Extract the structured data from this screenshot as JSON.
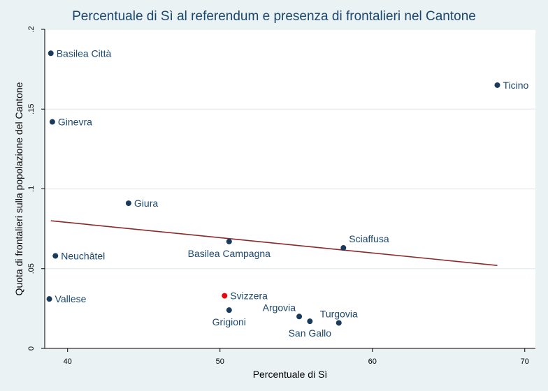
{
  "chart_data": {
    "type": "scatter",
    "title": "Percentuale di Sì al referendum e presenza di frontalieri nel Cantone",
    "xlabel": "Percentuale di Sì",
    "ylabel": "Quota di frontalieri sulla popolazione del Cantone",
    "xlim": [
      38.5,
      70.7
    ],
    "ylim": [
      0,
      0.2
    ],
    "xticks": [
      40,
      50,
      60,
      70
    ],
    "xtick_labels": [
      "40",
      "50",
      "60",
      "70"
    ],
    "yticks": [
      0,
      0.05,
      0.1,
      0.15,
      0.2
    ],
    "ytick_labels": [
      "0",
      ".05",
      ".1",
      ".15",
      ".2"
    ],
    "grid": "horizontal",
    "points": [
      {
        "label": "Basilea Città",
        "x": 38.9,
        "y": 0.185,
        "color": "#1a3a5c",
        "label_pos": "right"
      },
      {
        "label": "Ticino",
        "x": 68.2,
        "y": 0.165,
        "color": "#1a3a5c",
        "label_pos": "right"
      },
      {
        "label": "Ginevra",
        "x": 39.0,
        "y": 0.142,
        "color": "#1a3a5c",
        "label_pos": "right"
      },
      {
        "label": "Giura",
        "x": 44.0,
        "y": 0.091,
        "color": "#1a3a5c",
        "label_pos": "right"
      },
      {
        "label": "Basilea Campagna",
        "x": 50.6,
        "y": 0.067,
        "color": "#1a3a5c",
        "label_pos": "below"
      },
      {
        "label": "Sciaffusa",
        "x": 58.1,
        "y": 0.063,
        "color": "#1a3a5c",
        "label_pos": "above-right"
      },
      {
        "label": "Neuchâtel",
        "x": 39.2,
        "y": 0.058,
        "color": "#1a3a5c",
        "label_pos": "right"
      },
      {
        "label": "Vallese",
        "x": 38.8,
        "y": 0.031,
        "color": "#1a3a5c",
        "label_pos": "right"
      },
      {
        "label": "Svizzera",
        "x": 50.3,
        "y": 0.033,
        "color": "#e8050d",
        "label_pos": "right"
      },
      {
        "label": "Grigioni",
        "x": 50.6,
        "y": 0.024,
        "color": "#1a3a5c",
        "label_pos": "below"
      },
      {
        "label": "Argovia",
        "x": 55.2,
        "y": 0.02,
        "color": "#1a3a5c",
        "label_pos": "above-left"
      },
      {
        "label": "San Gallo",
        "x": 55.9,
        "y": 0.017,
        "color": "#1a3a5c",
        "label_pos": "below"
      },
      {
        "label": "Turgovia",
        "x": 57.8,
        "y": 0.016,
        "color": "#1a3a5c",
        "label_pos": "above"
      }
    ],
    "fit_line": {
      "x": [
        38.9,
        68.2
      ],
      "y": [
        0.08,
        0.052
      ],
      "color": "#8b2a2a"
    },
    "colors": {
      "plot_background": "#ffffff",
      "page_background": "#eaf2f3",
      "title": "#1a476f"
    }
  }
}
